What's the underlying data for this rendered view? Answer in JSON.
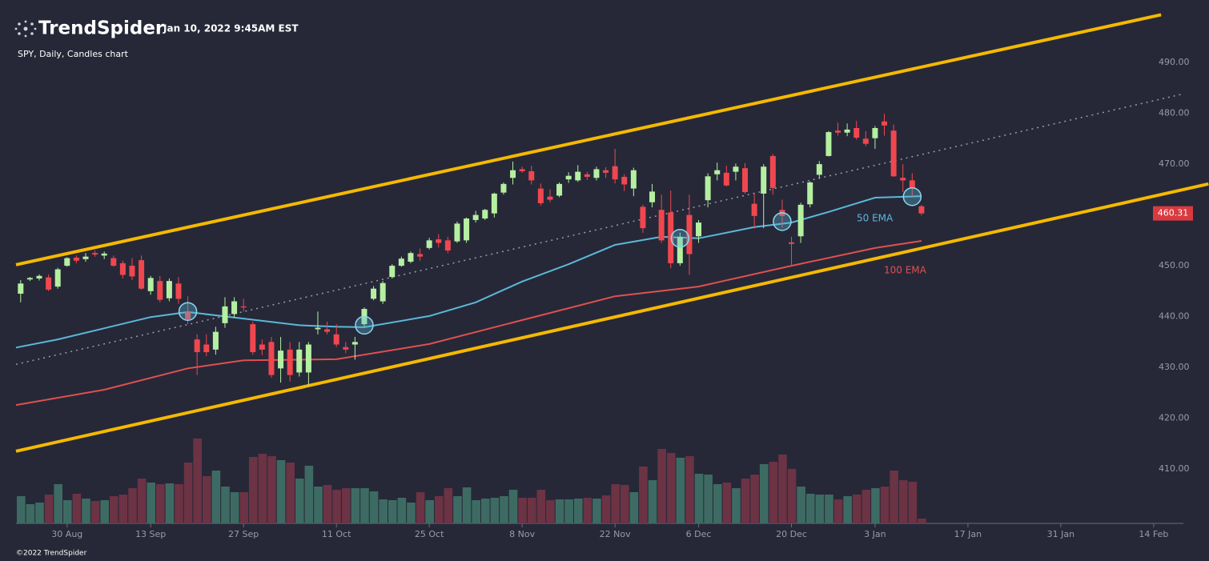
{
  "brand": "TrendSpider",
  "timestamp": "Jan 10, 2022 9:45AM EST",
  "footer": "©2022 TrendSpider",
  "chart_data": {
    "type": "candlestick",
    "title": "SPY, Daily, Candles chart",
    "up_color": "#b5f0a0",
    "down_color": "#f0474f",
    "volume_up_color": "#3d6b63",
    "volume_down_color": "#6b3344",
    "open": [
      444.5,
      447.3,
      447.5,
      447.7,
      445.9,
      450,
      451.6,
      451.3,
      452.5,
      452,
      451.5,
      450.5,
      450,
      451.1,
      445,
      447,
      443.6,
      446.5,
      441,
      435.5,
      434.5,
      433.5,
      438.7,
      440.5,
      442,
      438.5,
      434.5,
      435,
      429.8,
      433.5,
      429,
      429,
      437.5,
      437.5,
      436.5,
      434,
      434.5,
      438.5,
      443.5,
      443,
      447.8,
      450,
      450.8,
      452.3,
      453.5,
      455.2,
      455,
      454.8,
      455,
      459,
      459.3,
      460.3,
      464.4,
      467.3,
      469,
      468.6,
      465.2,
      463.6,
      463.8,
      467,
      466.8,
      468,
      467.3,
      468.8,
      469.6,
      467.5,
      465.2,
      461.6,
      462.5,
      461,
      460.5,
      450.5,
      460,
      455.8,
      462.9,
      468,
      468.3,
      468.5,
      469.2,
      462.2,
      464.2,
      471.6,
      461,
      454.6,
      455.8,
      462.1,
      467.9,
      471.6,
      476.6,
      476.2,
      477.1,
      475,
      475.1,
      478.4,
      476.6,
      467.3,
      466.8,
      461.7
    ],
    "high": [
      447.2,
      447.8,
      448.3,
      448.3,
      449.6,
      451.7,
      452,
      452.5,
      453,
      452.8,
      452,
      451,
      451.5,
      452,
      448,
      448,
      447.5,
      447.8,
      444,
      436.5,
      436.5,
      438,
      443.8,
      443.8,
      443.5,
      439,
      435.5,
      436,
      436,
      435,
      435,
      435,
      441,
      439,
      438.5,
      435,
      436,
      441.8,
      446,
      447,
      450.3,
      451.8,
      452.8,
      453.4,
      455.5,
      456.2,
      455.7,
      458.7,
      459.5,
      460.8,
      461.2,
      464.4,
      466.4,
      470.5,
      469.5,
      469.7,
      466.2,
      465,
      466.4,
      468.4,
      469.8,
      468.5,
      469.5,
      469.4,
      473,
      468,
      469.3,
      462,
      466.1,
      464,
      464.8,
      456.5,
      464,
      459,
      468.2,
      470.3,
      469.7,
      470.1,
      470.2,
      464.2,
      470,
      472,
      463,
      455.7,
      462.4,
      466.6,
      470.6,
      476.5,
      478.2,
      478,
      478.5,
      476.5,
      477.5,
      479.9,
      477.8,
      470,
      468.2,
      462
    ],
    "low": [
      442.8,
      447,
      447.1,
      445,
      445.5,
      449.8,
      450.5,
      450.8,
      451.8,
      451.3,
      449.8,
      447.5,
      447.2,
      445.3,
      444.3,
      442.8,
      443,
      442.5,
      438.5,
      428.5,
      432.2,
      432.5,
      437.8,
      439.8,
      441,
      432.5,
      432.4,
      428,
      427,
      427.2,
      428.2,
      426.5,
      436.5,
      436.5,
      434,
      432.8,
      431.5,
      438,
      443.2,
      442.5,
      447.5,
      449.8,
      450.5,
      451,
      453.2,
      453.6,
      452.5,
      454.5,
      454.5,
      458.5,
      459,
      459.5,
      464,
      466,
      468.3,
      466,
      461.8,
      462.5,
      463.5,
      466.3,
      466.5,
      466.9,
      466.8,
      467.3,
      466.2,
      464.7,
      463.7,
      456.5,
      461.5,
      454.5,
      449.5,
      450,
      448.2,
      454.5,
      461.5,
      466.8,
      465.6,
      466.8,
      464.2,
      457.3,
      457.4,
      464,
      457.5,
      450.2,
      454.5,
      461.5,
      467.2,
      471.5,
      475.6,
      475.5,
      474.8,
      473.5,
      473,
      475.6,
      467.5,
      464.5,
      463.6,
      459.9
    ],
    "close": [
      446.5,
      447.6,
      448,
      445.3,
      449.3,
      451.5,
      451,
      451.8,
      452.2,
      452.4,
      450,
      448.2,
      447.9,
      445.5,
      447.6,
      443.3,
      447,
      443.5,
      439.5,
      433,
      433,
      437,
      442,
      443,
      441.8,
      433,
      433.5,
      428.5,
      433.3,
      428.5,
      433.5,
      434.5,
      437.8,
      437,
      434.5,
      433.5,
      435,
      441.5,
      445.5,
      446.6,
      450,
      451.4,
      452.5,
      451.8,
      455,
      454.5,
      453,
      458.3,
      459.3,
      460,
      461,
      464.2,
      466.1,
      468.8,
      468.6,
      466.8,
      462.3,
      463,
      466.1,
      467.7,
      468.5,
      467.5,
      469,
      468.3,
      467,
      466,
      468.8,
      457.4,
      464.6,
      455,
      450.5,
      455.7,
      452.3,
      458.5,
      467.6,
      468.8,
      465.8,
      469.5,
      464.5,
      459.8,
      469.5,
      465.3,
      459.8,
      454.3,
      462,
      466.4,
      470,
      476.3,
      476.2,
      476.8,
      475.2,
      474,
      477.1,
      477.6,
      467.6,
      466.8,
      465.3,
      460.3
    ],
    "volume": [
      34,
      24,
      26,
      36,
      49,
      29,
      37,
      31,
      28,
      29,
      34,
      36,
      44,
      56,
      51,
      49,
      50,
      49,
      76,
      106,
      59,
      66,
      46,
      39,
      39,
      83,
      87,
      84,
      79,
      76,
      56,
      72,
      46,
      48,
      42,
      44,
      44,
      44,
      40,
      30,
      29,
      32,
      26,
      39,
      29,
      34,
      44,
      34,
      45,
      29,
      31,
      32,
      34,
      42,
      32,
      32,
      42,
      29,
      30,
      30,
      31,
      32,
      31,
      35,
      49,
      48,
      39,
      71,
      54,
      93,
      88,
      82,
      84,
      62,
      61,
      49,
      51,
      44,
      56,
      61,
      74,
      77,
      86,
      68,
      46,
      37,
      36,
      36,
      30,
      34,
      36,
      42,
      44,
      46,
      66,
      54,
      52,
      6
    ],
    "volume_lim": [
      0,
      110
    ],
    "ema": [
      {
        "name": "50 EMA",
        "color": "#5bb8d8",
        "x": [
          -0.5,
          4,
          9,
          14,
          18,
          24,
          30,
          34,
          37,
          44,
          49,
          54,
          59,
          64,
          69,
          73,
          79,
          83,
          87,
          92,
          97
        ],
        "values": [
          433.9,
          435.5,
          437.7,
          439.9,
          440.9,
          439.6,
          438.3,
          438,
          437.9,
          440.1,
          442.8,
          446.9,
          450.3,
          454.1,
          455.7,
          455.4,
          457.6,
          458.5,
          460.6,
          463.4,
          463.7
        ]
      },
      {
        "name": "100 EMA",
        "color": "#e0504f",
        "x": [
          -0.5,
          9,
          18,
          24,
          34,
          44,
          54,
          64,
          73,
          83,
          92,
          97
        ],
        "values": [
          422.6,
          425.6,
          429.8,
          431.4,
          431.6,
          434.6,
          439.3,
          444,
          445.9,
          450,
          453.5,
          454.9
        ]
      }
    ],
    "trendlines": [
      {
        "x": [
          -0.5,
          122.8
        ],
        "values": [
          450.2,
          499.4
        ]
      },
      {
        "x": [
          -0.5,
          127.9
        ],
        "values": [
          413.5,
          466.1
        ]
      },
      {
        "x": [
          -0.5,
          124.9
        ],
        "values": [
          430.6,
          483.7
        ]
      }
    ],
    "trendline_color": "#f5b900",
    "signals": {
      "x": [
        18,
        37,
        71,
        82,
        96
      ],
      "values": [
        441,
        438.3,
        455.4,
        458.7,
        463.6
      ]
    },
    "last_price": 460.31,
    "xlim": [
      -0.5,
      125.2
    ],
    "xticks": [
      {
        "value": 5,
        "label": "30 Aug"
      },
      {
        "value": 14,
        "label": "13 Sep"
      },
      {
        "value": 24,
        "label": "27 Sep"
      },
      {
        "value": 34,
        "label": "11 Oct"
      },
      {
        "value": 44,
        "label": "25 Oct"
      },
      {
        "value": 54,
        "label": "8 Nov"
      },
      {
        "value": 64,
        "label": "22 Nov"
      },
      {
        "value": 73,
        "label": "6 Dec"
      },
      {
        "value": 83,
        "label": "20 Dec"
      },
      {
        "value": 92,
        "label": "3 Jan"
      },
      {
        "value": 102,
        "label": "17 Jan"
      },
      {
        "value": 112,
        "label": "31 Jan"
      },
      {
        "value": 122,
        "label": "14 Feb"
      }
    ],
    "ylim": [
      399.3,
      502.3
    ],
    "yticks": [
      {
        "value": 410,
        "label": "410.00"
      },
      {
        "value": 420,
        "label": "420.00"
      },
      {
        "value": 430,
        "label": "430.00"
      },
      {
        "value": 440,
        "label": "440.00"
      },
      {
        "value": 450,
        "label": "450.00"
      },
      {
        "value": 460,
        "label": "460.00"
      },
      {
        "value": 470,
        "label": "470.00"
      },
      {
        "value": 480,
        "label": "480.00"
      },
      {
        "value": 490,
        "label": "490.00"
      }
    ]
  }
}
